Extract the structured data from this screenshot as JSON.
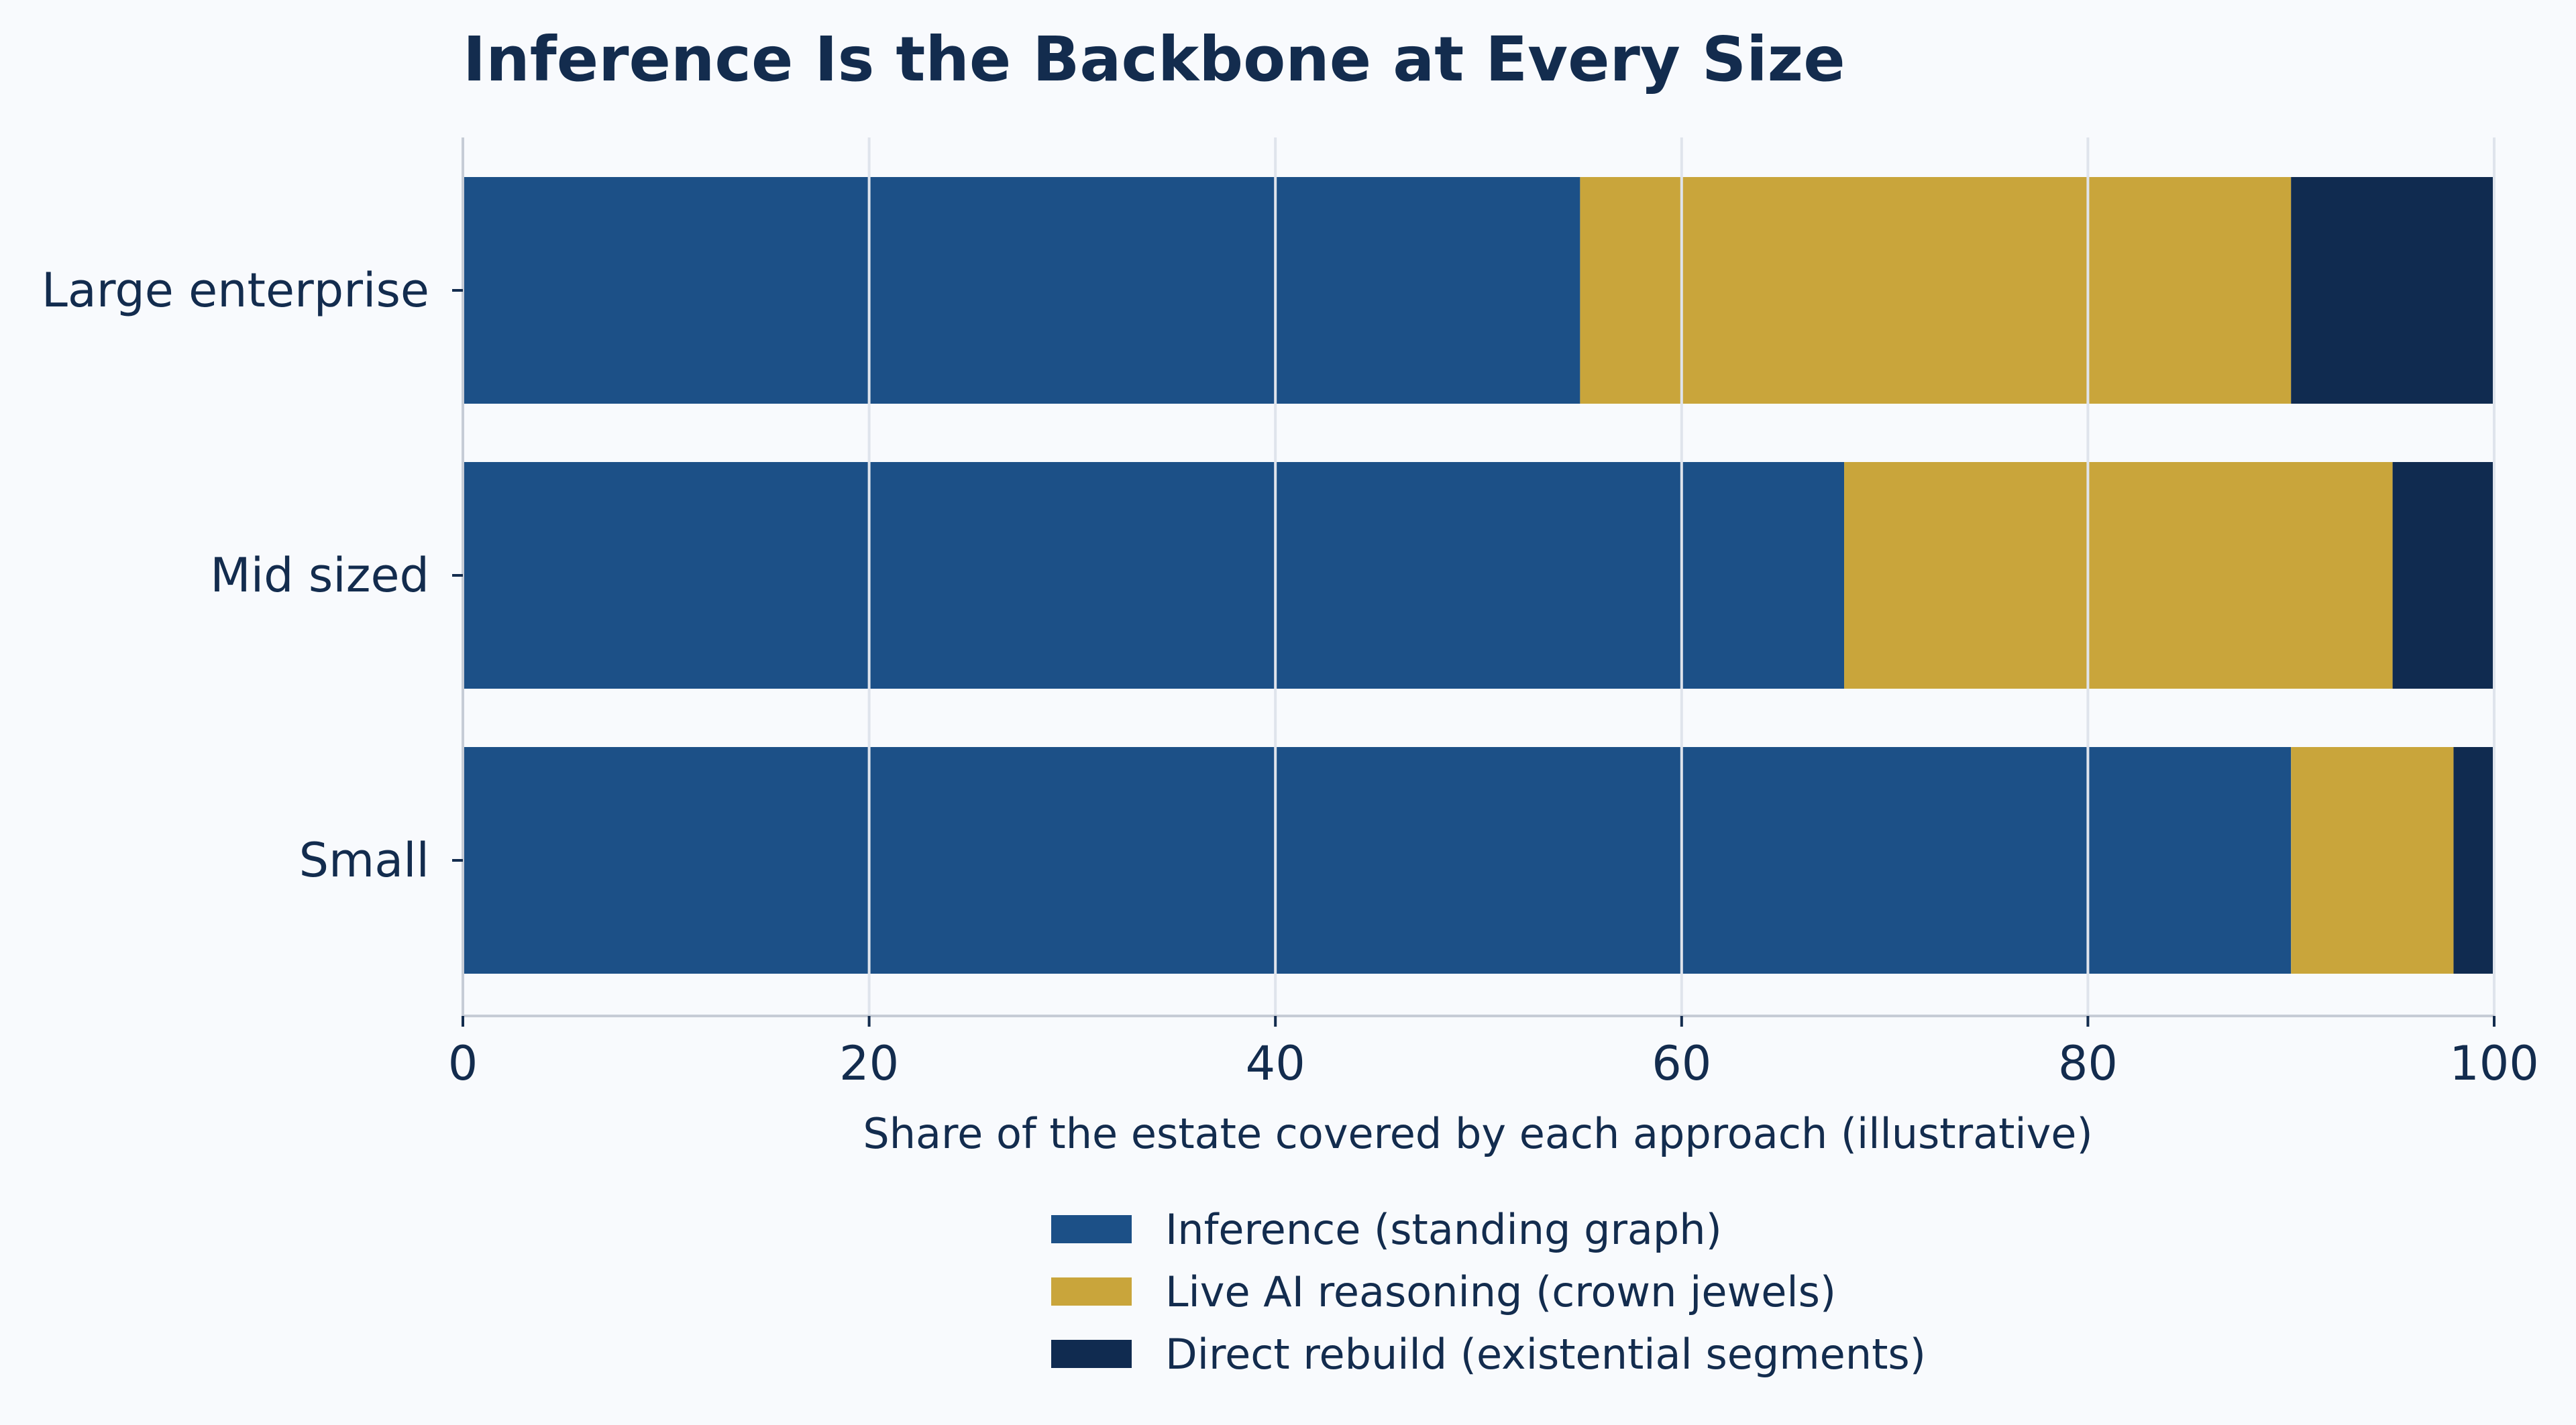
{
  "chart_data": {
    "type": "bar",
    "orientation": "horizontal",
    "stacked": true,
    "title": "Inference Is the Backbone at Every Size",
    "xlabel": "Share of the estate covered by each approach (illustrative)",
    "ylabel": "",
    "xlim": [
      0,
      100
    ],
    "xticks": [
      0,
      20,
      40,
      60,
      80,
      100
    ],
    "categories": [
      "Large enterprise",
      "Mid sized",
      "Small"
    ],
    "series": [
      {
        "name": "Inference (standing graph)",
        "color": "#1c5087",
        "values": [
          55,
          68,
          90
        ]
      },
      {
        "name": "Live AI reasoning (crown jewels)",
        "color": "#c9a53b",
        "values": [
          35,
          27,
          8
        ]
      },
      {
        "name": "Direct rebuild (existential segments)",
        "color": "#102b50",
        "values": [
          10,
          5,
          2
        ]
      }
    ],
    "grid": "vertical",
    "legend_position": "bottom-center"
  }
}
